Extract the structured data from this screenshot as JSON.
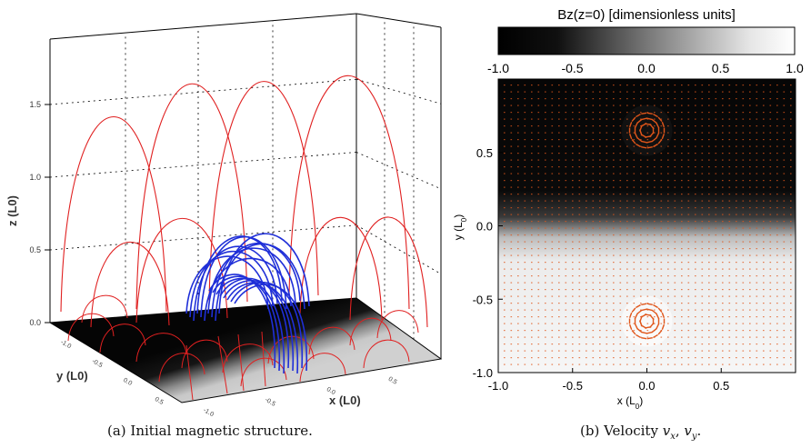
{
  "figure_a": {
    "caption": "(a) Initial magnetic structure.",
    "zlabel": "z (L0)",
    "ylabel": "y (L0)",
    "xlabel": "x (L0)",
    "z_ticks": [
      "0.0",
      "0.5",
      "1.0",
      "1.5"
    ],
    "y_ticks": [
      "-1.0",
      "-0.5",
      "0.0",
      "0.5"
    ],
    "x_ticks": [
      "-1.0",
      "-0.5",
      "0.0",
      "0.5"
    ],
    "colors": {
      "outer_field_lines": "#e02020",
      "inner_field_lines": "#1f2fd8"
    }
  },
  "figure_b": {
    "caption_prefix": "(b) Velocity ",
    "caption_math": "vx, vy",
    "colorbar": {
      "title": "Bz(z=0) [dimensionless units]",
      "ticks": [
        "-1.0",
        "-0.5",
        "0.0",
        "0.5",
        "1.0"
      ],
      "range": [
        -1.0,
        1.0
      ]
    },
    "xlabel": "x (L",
    "xlabel_sub": "0",
    "ylabel": "y (L",
    "ylabel_sub": "0",
    "x_ticks": [
      "-1.0",
      "-0.5",
      "0.0",
      "0.5"
    ],
    "y_ticks": [
      "0.5",
      "0.0",
      "-0.5",
      "-1.0"
    ],
    "arrow_color": "#e0561a"
  },
  "chart_data": {
    "type": "heatmap",
    "title": "Bz(z=0) [dimensionless units]",
    "xlabel": "x (L0)",
    "ylabel": "y (L0)",
    "xlim": [
      -1.0,
      1.0
    ],
    "ylim": [
      -1.0,
      1.0
    ],
    "zlim": [
      -1.0,
      1.0
    ],
    "vortices": [
      {
        "x": 0.0,
        "y": 0.65
      },
      {
        "x": 0.0,
        "y": -0.65
      }
    ]
  }
}
